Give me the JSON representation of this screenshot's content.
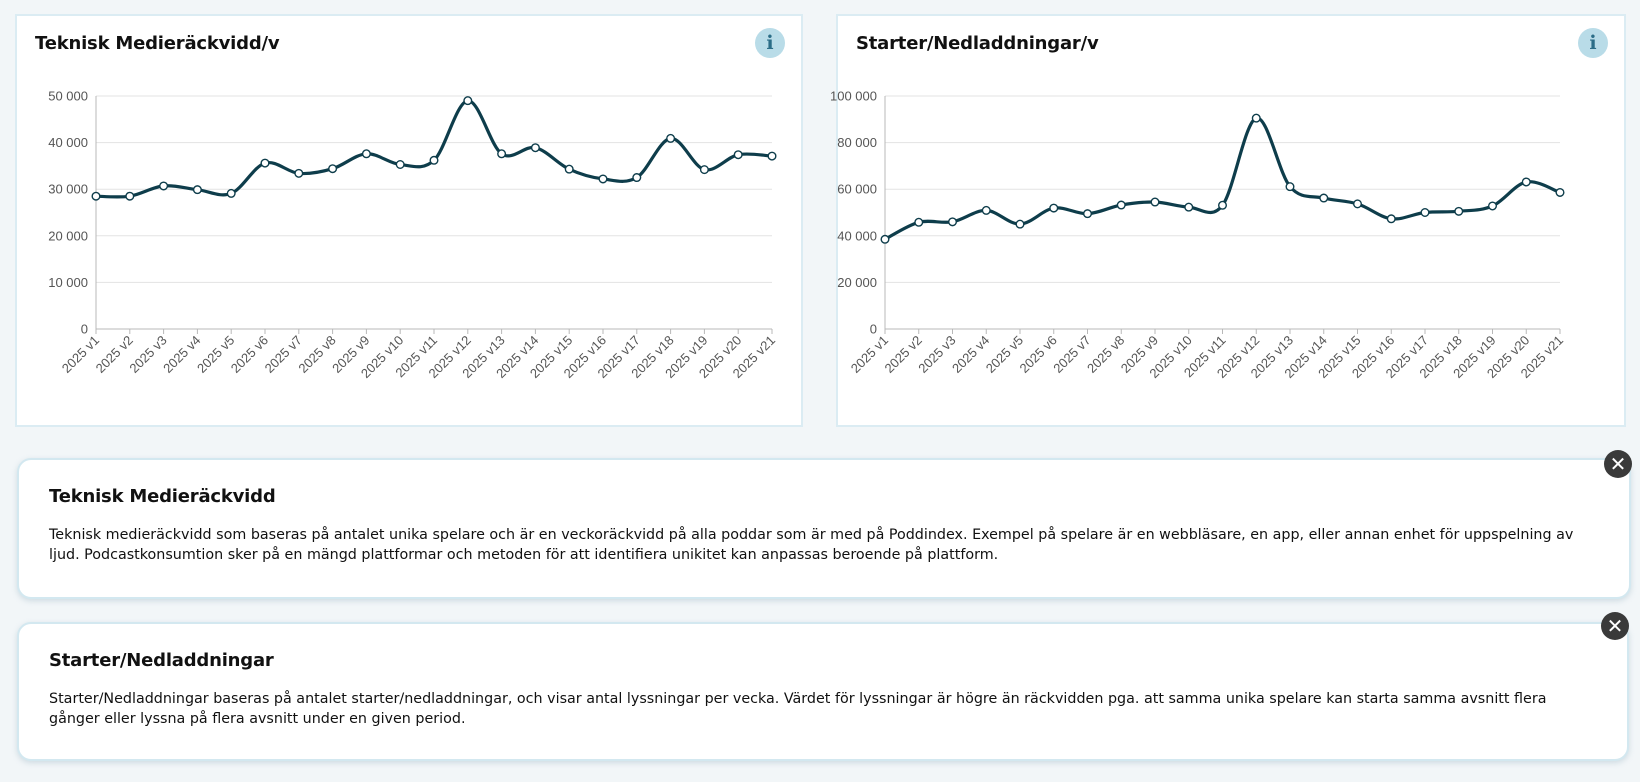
{
  "colors": {
    "line": "#0e3d4b",
    "accent": "#b9dce8"
  },
  "charts": [
    {
      "title": "Teknisk Medieräckvidd/v",
      "info_icon": "info-icon"
    },
    {
      "title": "Starter/Nedladdningar/v",
      "info_icon": "info-icon"
    }
  ],
  "chart_data": [
    {
      "type": "line",
      "title": "Teknisk Medieräckvidd/v",
      "categories": [
        "2025 v1",
        "2025 v2",
        "2025 v3",
        "2025 v4",
        "2025 v5",
        "2025 v6",
        "2025 v7",
        "2025 v8",
        "2025 v9",
        "2025 v10",
        "2025 v11",
        "2025 v12",
        "2025 v13",
        "2025 v14",
        "2025 v15",
        "2025 v16",
        "2025 v17",
        "2025 v18",
        "2025 v19",
        "2025 v20",
        "2025 v21"
      ],
      "values": [
        28500,
        28500,
        30700,
        29900,
        29100,
        35600,
        33400,
        34400,
        37600,
        35300,
        36200,
        49000,
        37600,
        38900,
        34300,
        32200,
        32500,
        40900,
        34200,
        37400,
        37100
      ],
      "yticks": [
        "0",
        "10 000",
        "20 000",
        "30 000",
        "40 000",
        "50 000"
      ],
      "ylim": [
        0,
        50000
      ],
      "grid": true,
      "legend": "none"
    },
    {
      "type": "line",
      "title": "Starter/Nedladdningar/v",
      "categories": [
        "2025 v1",
        "2025 v2",
        "2025 v3",
        "2025 v4",
        "2025 v5",
        "2025 v6",
        "2025 v7",
        "2025 v8",
        "2025 v9",
        "2025 v10",
        "2025 v11",
        "2025 v12",
        "2025 v13",
        "2025 v14",
        "2025 v15",
        "2025 v16",
        "2025 v17",
        "2025 v18",
        "2025 v19",
        "2025 v20",
        "2025 v21"
      ],
      "values": [
        38500,
        45800,
        46000,
        50900,
        45000,
        51900,
        49500,
        53200,
        54500,
        52300,
        53100,
        90500,
        61100,
        56200,
        53700,
        47300,
        50000,
        50500,
        52800,
        63100,
        58600
      ],
      "yticks": [
        "0",
        "20 000",
        "40 000",
        "60 000",
        "80 000",
        "100 000"
      ],
      "ylim": [
        0,
        100000
      ],
      "grid": true,
      "legend": "none"
    }
  ],
  "panels": [
    {
      "title": "Teknisk Medieräckvidd",
      "text": "Teknisk medieräckvidd som baseras på antalet unika spelare och är en veckoräckvidd på alla poddar som är med på Poddindex. Exempel på spelare är en webbläsare, en app, eller annan enhet för uppspelning av ljud. Podcastkonsumtion sker på en mängd plattformar och metoden för att identifiera unikitet kan anpassas beroende på plattform.",
      "close_icon": "close-icon"
    },
    {
      "title": "Starter/Nedladdningar",
      "text": "Starter/Nedladdningar baseras på antalet starter/nedladdningar, och visar antal lyssningar per vecka. Värdet för lyssningar är högre än räckvidden pga. att samma unika spelare kan starta samma avsnitt flera gånger eller lyssna på flera avsnitt under en given period.",
      "close_icon": "close-icon"
    }
  ]
}
